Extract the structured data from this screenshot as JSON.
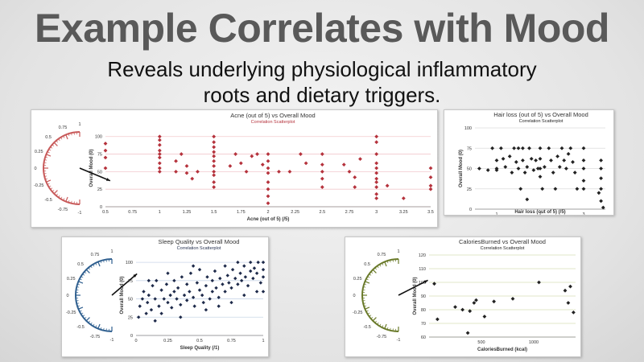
{
  "slide": {
    "title": "Example Correlates with Mood",
    "subtitle_line1": "Reveals underlying physiological inflammatory",
    "subtitle_line2": "roots and dietary triggers."
  },
  "chart_data": [
    {
      "id": "acne",
      "type": "scatter",
      "title": "Acne (out of 5) vs Overall Mood",
      "subtitle": "Correlation Scatterplot",
      "xlabel": "Acne (out of 5) (/5)",
      "ylabel": "Overall Mood (0)",
      "xlim": [
        0.5,
        3.5
      ],
      "ylim": [
        0,
        110
      ],
      "xticks": [
        "0.5",
        "0.75",
        "1",
        "1.25",
        "1.5",
        "1.75",
        "2",
        "2.25",
        "2.5",
        "2.75",
        "3",
        "3.25",
        "3.5"
      ],
      "yticks": [
        "0",
        "25",
        "50",
        "75",
        "100"
      ],
      "color": "#b5323c",
      "gauge": {
        "ticks": [
          "1",
          "0.75",
          "0.5",
          "0.25",
          "0",
          "-0.25",
          "-0.5",
          "-0.75",
          "-1"
        ],
        "value": -0.25,
        "color": "#c85a5a"
      },
      "points": [
        [
          0.5,
          55
        ],
        [
          0.5,
          70
        ],
        [
          0.5,
          90
        ],
        [
          0.5,
          80
        ],
        [
          1,
          100
        ],
        [
          1,
          95
        ],
        [
          1,
          88
        ],
        [
          1,
          80
        ],
        [
          1,
          75
        ],
        [
          1,
          70
        ],
        [
          1,
          62
        ],
        [
          1,
          55
        ],
        [
          1,
          50
        ],
        [
          1.15,
          65
        ],
        [
          1.15,
          50
        ],
        [
          1.2,
          75
        ],
        [
          1.25,
          58
        ],
        [
          1.25,
          48
        ],
        [
          1.3,
          40
        ],
        [
          1.35,
          50
        ],
        [
          1.5,
          100
        ],
        [
          1.5,
          92
        ],
        [
          1.5,
          85
        ],
        [
          1.5,
          78
        ],
        [
          1.5,
          72
        ],
        [
          1.5,
          65
        ],
        [
          1.5,
          58
        ],
        [
          1.5,
          50
        ],
        [
          1.5,
          45
        ],
        [
          1.5,
          35
        ],
        [
          1.5,
          28
        ],
        [
          1.65,
          58
        ],
        [
          1.7,
          75
        ],
        [
          1.75,
          62
        ],
        [
          1.8,
          50
        ],
        [
          1.85,
          72
        ],
        [
          1.9,
          75
        ],
        [
          1.95,
          60
        ],
        [
          2,
          75
        ],
        [
          2,
          65
        ],
        [
          2,
          55
        ],
        [
          2,
          48
        ],
        [
          2,
          35
        ],
        [
          2,
          25
        ],
        [
          2,
          15
        ],
        [
          2,
          5
        ],
        [
          2.1,
          50
        ],
        [
          2.2,
          50
        ],
        [
          2.3,
          75
        ],
        [
          2.35,
          62
        ],
        [
          2.5,
          75
        ],
        [
          2.5,
          60
        ],
        [
          2.5,
          50
        ],
        [
          2.5,
          40
        ],
        [
          2.5,
          28
        ],
        [
          2.7,
          60
        ],
        [
          2.75,
          50
        ],
        [
          2.8,
          42
        ],
        [
          2.8,
          28
        ],
        [
          2.85,
          68
        ],
        [
          3,
          100
        ],
        [
          3,
          92
        ],
        [
          3,
          75
        ],
        [
          3,
          62
        ],
        [
          3,
          55
        ],
        [
          3,
          48
        ],
        [
          3,
          40
        ],
        [
          3,
          35
        ],
        [
          3,
          28
        ],
        [
          3,
          18
        ],
        [
          3,
          12
        ],
        [
          3.1,
          30
        ],
        [
          3.25,
          12
        ],
        [
          3.5,
          55
        ],
        [
          3.5,
          42
        ],
        [
          3.5,
          30
        ],
        [
          3.5,
          25
        ]
      ]
    },
    {
      "id": "hair",
      "type": "scatter",
      "title": "Hair loss (out of 5) vs Overall Mood",
      "subtitle": "Correlation Scatterplot",
      "xlabel": "Hair loss (out of 5) (/5)",
      "ylabel": "Overall Mood (0)",
      "xlim": [
        0.5,
        3.5
      ],
      "ylim": [
        0,
        100
      ],
      "xticks": [
        "1",
        "2",
        "3"
      ],
      "yticks": [
        "0",
        "25",
        "50",
        "75",
        "100"
      ],
      "color": "#222222",
      "points": [
        [
          0.6,
          50
        ],
        [
          0.8,
          48
        ],
        [
          0.9,
          75
        ],
        [
          1,
          60
        ],
        [
          1,
          50
        ],
        [
          1,
          48
        ],
        [
          1.1,
          75
        ],
        [
          1.15,
          62
        ],
        [
          1.2,
          52
        ],
        [
          1.3,
          65
        ],
        [
          1.35,
          45
        ],
        [
          1.4,
          75
        ],
        [
          1.45,
          58
        ],
        [
          1.5,
          75
        ],
        [
          1.5,
          50
        ],
        [
          1.55,
          25
        ],
        [
          1.6,
          75
        ],
        [
          1.6,
          60
        ],
        [
          1.65,
          45
        ],
        [
          1.7,
          12
        ],
        [
          1.7,
          52
        ],
        [
          1.75,
          75
        ],
        [
          1.8,
          62
        ],
        [
          1.85,
          48
        ],
        [
          1.9,
          60
        ],
        [
          1.95,
          50
        ],
        [
          2,
          75
        ],
        [
          2,
          62
        ],
        [
          2,
          50
        ],
        [
          2,
          40
        ],
        [
          2.05,
          25
        ],
        [
          2.1,
          52
        ],
        [
          2.2,
          75
        ],
        [
          2.25,
          60
        ],
        [
          2.3,
          45
        ],
        [
          2.35,
          25
        ],
        [
          2.4,
          65
        ],
        [
          2.45,
          52
        ],
        [
          2.5,
          75
        ],
        [
          2.55,
          60
        ],
        [
          2.6,
          50
        ],
        [
          2.65,
          68
        ],
        [
          2.7,
          75
        ],
        [
          2.75,
          58
        ],
        [
          2.8,
          45
        ],
        [
          2.85,
          25
        ],
        [
          3,
          75
        ],
        [
          3,
          60
        ],
        [
          3,
          50
        ],
        [
          3,
          35
        ],
        [
          3,
          25
        ],
        [
          3.4,
          60
        ],
        [
          3.4,
          50
        ],
        [
          3.4,
          38
        ],
        [
          3.4,
          25
        ],
        [
          3.4,
          10
        ],
        [
          3.35,
          20
        ],
        [
          3.45,
          2
        ]
      ]
    },
    {
      "id": "sleep",
      "type": "scatter",
      "title": "Sleep Quality vs Overall Mood",
      "subtitle": "Correlation Scatterplot",
      "xlabel": "Sleep Quality (/1)",
      "ylabel": "Overall Mood (0)",
      "xlim": [
        0,
        1
      ],
      "ylim": [
        0,
        110
      ],
      "xticks": [
        "0",
        "0.25",
        "0.5",
        "0.75",
        "1"
      ],
      "yticks": [
        "0",
        "25",
        "50",
        "75",
        "100"
      ],
      "color": "#1e2a4a",
      "gauge": {
        "ticks": [
          "1",
          "0.75",
          "0.5",
          "0.25",
          "0",
          "-0.25",
          "-0.5",
          "-0.75",
          "-1"
        ],
        "value": 0.45,
        "color": "#2f5f8f"
      },
      "dense": true,
      "points": [
        [
          0.02,
          25
        ],
        [
          0.03,
          40
        ],
        [
          0.05,
          50
        ],
        [
          0.06,
          60
        ],
        [
          0.08,
          30
        ],
        [
          0.09,
          45
        ],
        [
          0.1,
          55
        ],
        [
          0.12,
          35
        ],
        [
          0.13,
          68
        ],
        [
          0.15,
          50
        ],
        [
          0.16,
          75
        ],
        [
          0.18,
          40
        ],
        [
          0.2,
          30
        ],
        [
          0.2,
          62
        ],
        [
          0.22,
          50
        ],
        [
          0.24,
          70
        ],
        [
          0.25,
          45
        ],
        [
          0.27,
          55
        ],
        [
          0.28,
          38
        ],
        [
          0.3,
          60
        ],
        [
          0.3,
          75
        ],
        [
          0.32,
          50
        ],
        [
          0.33,
          65
        ],
        [
          0.35,
          42
        ],
        [
          0.36,
          80
        ],
        [
          0.38,
          55
        ],
        [
          0.4,
          48
        ],
        [
          0.4,
          70
        ],
        [
          0.42,
          60
        ],
        [
          0.43,
          85
        ],
        [
          0.45,
          52
        ],
        [
          0.46,
          40
        ],
        [
          0.48,
          72
        ],
        [
          0.5,
          62
        ],
        [
          0.5,
          90
        ],
        [
          0.52,
          55
        ],
        [
          0.53,
          45
        ],
        [
          0.55,
          68
        ],
        [
          0.56,
          80
        ],
        [
          0.58,
          50
        ],
        [
          0.6,
          75
        ],
        [
          0.6,
          60
        ],
        [
          0.62,
          88
        ],
        [
          0.63,
          65
        ],
        [
          0.65,
          52
        ],
        [
          0.66,
          78
        ],
        [
          0.68,
          70
        ],
        [
          0.7,
          95
        ],
        [
          0.7,
          60
        ],
        [
          0.72,
          82
        ],
        [
          0.73,
          72
        ],
        [
          0.75,
          65
        ],
        [
          0.76,
          90
        ],
        [
          0.78,
          78
        ],
        [
          0.8,
          100
        ],
        [
          0.8,
          70
        ],
        [
          0.82,
          85
        ],
        [
          0.83,
          75
        ],
        [
          0.85,
          95
        ],
        [
          0.86,
          80
        ],
        [
          0.88,
          68
        ],
        [
          0.9,
          100
        ],
        [
          0.9,
          88
        ],
        [
          0.92,
          78
        ],
        [
          0.93,
          92
        ],
        [
          0.95,
          85
        ],
        [
          0.96,
          100
        ],
        [
          0.98,
          72
        ],
        [
          1,
          100
        ],
        [
          1,
          90
        ],
        [
          1,
          80
        ],
        [
          1,
          60
        ],
        [
          0.1,
          75
        ],
        [
          0.15,
          20
        ],
        [
          0.25,
          85
        ],
        [
          0.35,
          25
        ],
        [
          0.45,
          95
        ],
        [
          0.55,
          35
        ],
        [
          0.65,
          40
        ],
        [
          0.75,
          45
        ],
        [
          0.85,
          55
        ],
        [
          0.95,
          60
        ]
      ]
    },
    {
      "id": "calories",
      "type": "scatter",
      "title": "CaloriesBurned vs Overall Mood",
      "subtitle": "Correlation Scatterplot",
      "xlabel": "CaloriesBurned (kcal)",
      "ylabel": "Overall Mood (0)",
      "xlim": [
        0,
        1400
      ],
      "ylim": [
        60,
        120
      ],
      "xticks": [
        "500",
        "1000"
      ],
      "yticks": [
        "60",
        "70",
        "80",
        "90",
        "100",
        "110",
        "120"
      ],
      "color": "#222222",
      "gauge": {
        "ticks": [
          "1",
          "0.75",
          "0.5",
          "0.25",
          "0",
          "-0.25",
          "-0.5",
          "-0.75",
          "-1"
        ],
        "value": 0.3,
        "color": "#6a7a2a"
      },
      "points": [
        [
          50,
          99
        ],
        [
          80,
          73
        ],
        [
          250,
          82
        ],
        [
          320,
          80
        ],
        [
          370,
          63
        ],
        [
          390,
          79
        ],
        [
          430,
          85
        ],
        [
          450,
          87
        ],
        [
          530,
          75
        ],
        [
          620,
          86
        ],
        [
          800,
          88
        ],
        [
          1050,
          100
        ],
        [
          1300,
          94
        ],
        [
          1330,
          85
        ],
        [
          1350,
          97
        ],
        [
          1380,
          78
        ]
      ]
    }
  ]
}
